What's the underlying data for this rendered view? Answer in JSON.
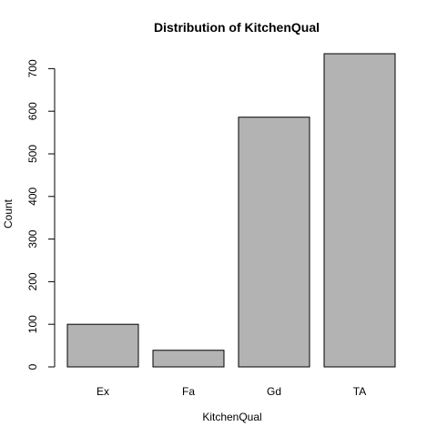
{
  "chart_data": {
    "type": "bar",
    "title": "Distribution of KitchenQual",
    "xlabel": "KitchenQual",
    "ylabel": "Count",
    "categories": [
      "Ex",
      "Fa",
      "Gd",
      "TA"
    ],
    "values": [
      100,
      39,
      586,
      735
    ],
    "ylim": [
      0,
      735
    ],
    "yticks": [
      0,
      100,
      200,
      300,
      400,
      500,
      600,
      700
    ],
    "bar_color": "#b3b3b3",
    "grid": false,
    "legend": "none"
  }
}
